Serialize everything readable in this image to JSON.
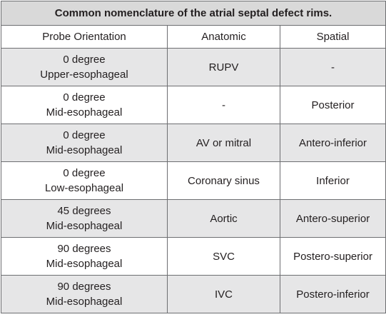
{
  "title": "Common nomenclature of the atrial septal defect rims.",
  "headers": [
    "Probe Orientation",
    "Anatomic",
    "Spatial"
  ],
  "rows": [
    {
      "orientation": [
        "0 degree",
        "Upper-esophageal"
      ],
      "anatomic": "RUPV",
      "spatial": "-"
    },
    {
      "orientation": [
        "0 degree",
        "Mid-esophageal"
      ],
      "anatomic": "-",
      "spatial": "Posterior"
    },
    {
      "orientation": [
        "0 degree",
        "Mid-esophageal"
      ],
      "anatomic": "AV or mitral",
      "spatial": "Antero-inferior"
    },
    {
      "orientation": [
        "0 degree",
        "Low-esophageal"
      ],
      "anatomic": "Coronary sinus",
      "spatial": "Inferior"
    },
    {
      "orientation": [
        "45 degrees",
        "Mid-esophageal"
      ],
      "anatomic": "Aortic",
      "spatial": "Antero-superior"
    },
    {
      "orientation": [
        "90 degrees",
        "Mid-esophageal"
      ],
      "anatomic": "SVC",
      "spatial": "Postero-superior"
    },
    {
      "orientation": [
        "90 degrees",
        "Mid-esophageal"
      ],
      "anatomic": "IVC",
      "spatial": "Postero-inferior"
    }
  ],
  "colors": {
    "title_bg": "#d9d9d9",
    "shaded_row_bg": "#e6e6e7",
    "border": "#6d6e71"
  }
}
